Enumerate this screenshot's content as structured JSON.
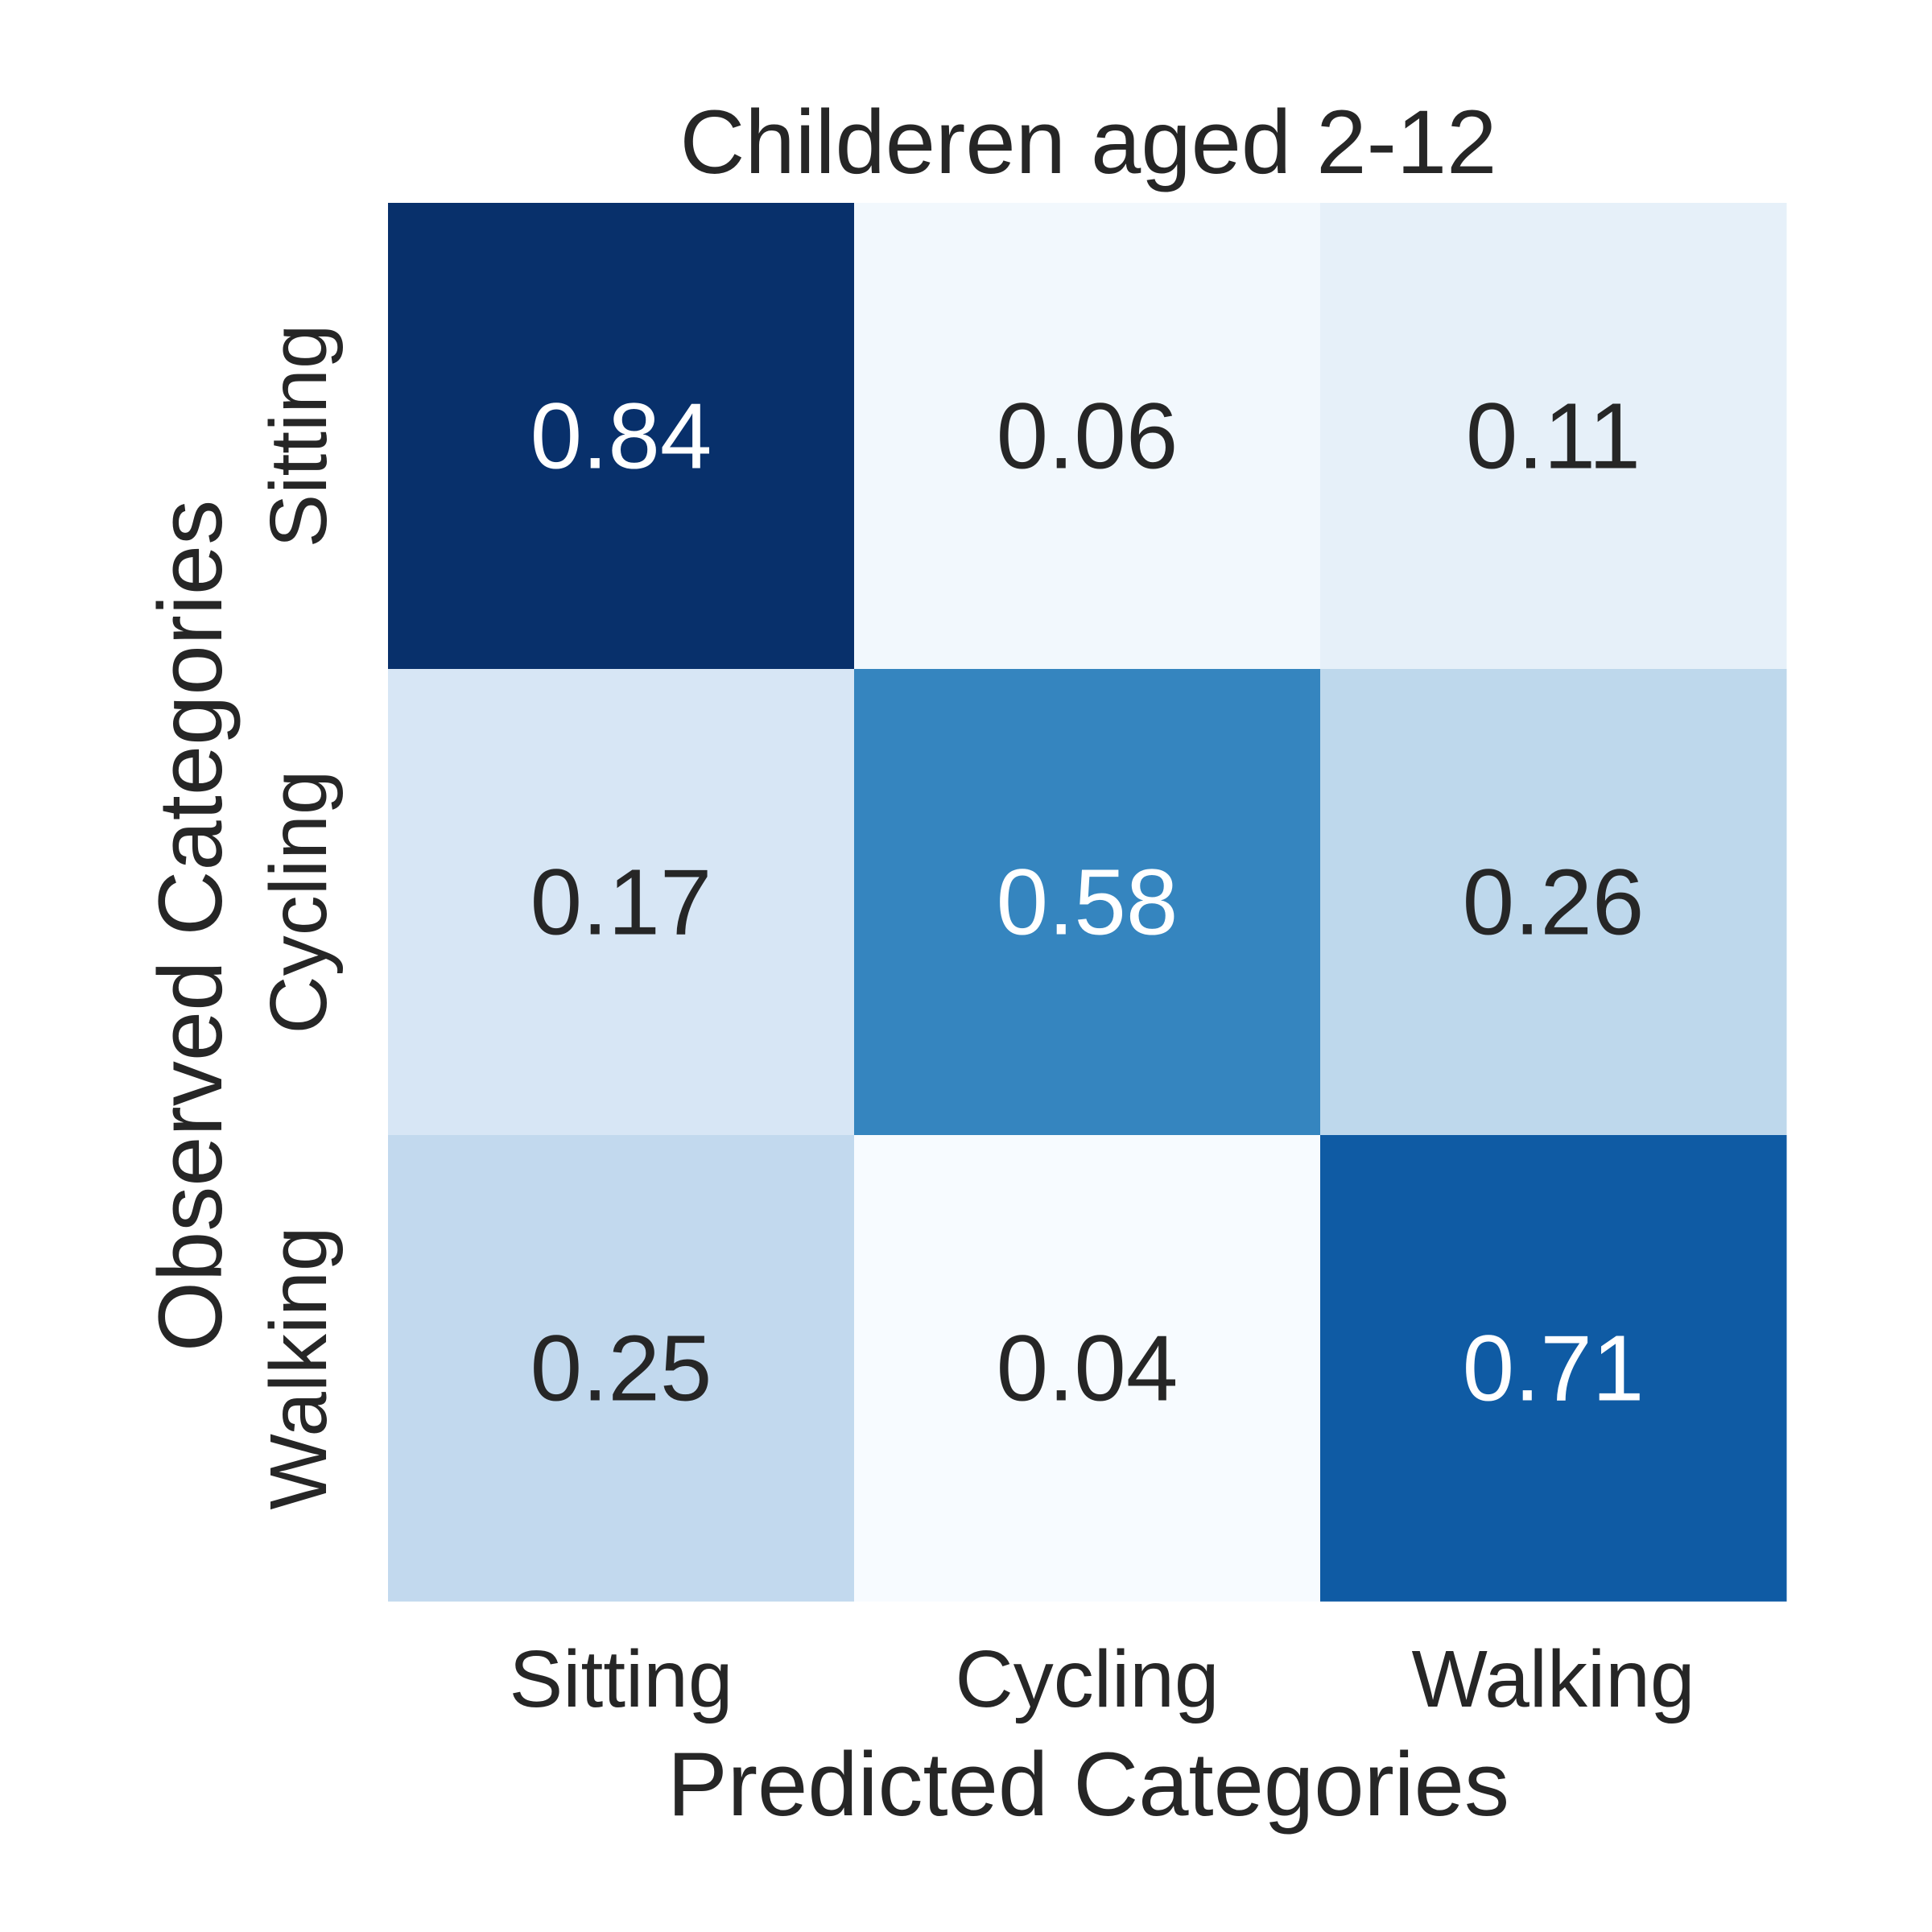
{
  "chart_data": {
    "type": "heatmap",
    "title": "Childeren aged 2-12",
    "xlabel": "Predicted Categories",
    "ylabel": "Observed Categories",
    "x_categories": [
      "Sitting",
      "Cycling",
      "Walking"
    ],
    "y_categories": [
      "Sitting",
      "Cycling",
      "Walking"
    ],
    "values": [
      [
        0.84,
        0.06,
        0.11
      ],
      [
        0.17,
        0.58,
        0.26
      ],
      [
        0.25,
        0.04,
        0.71
      ]
    ],
    "value_format": "2 decimals",
    "colormap": "Blues",
    "vmin": 0.04,
    "vmax": 0.84,
    "colorbar": false,
    "grid": false
  }
}
